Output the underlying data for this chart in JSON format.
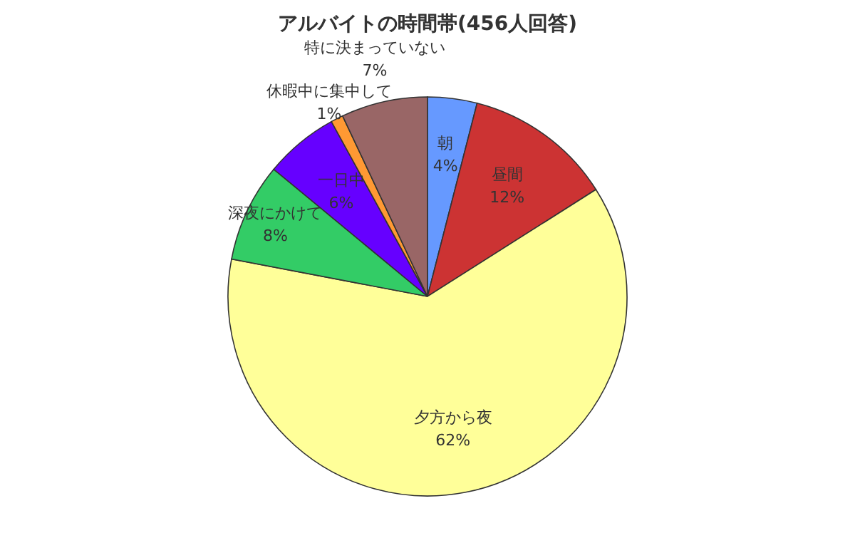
{
  "chart_data": {
    "type": "pie",
    "title": "アルバイトの時間帯(456人回答)",
    "categories": [
      "朝",
      "昼間",
      "夕方から夜",
      "深夜にかけて",
      "一日中",
      "休暇中に集中して",
      "特に決まっていない"
    ],
    "values": [
      4,
      12,
      62,
      8,
      6,
      1,
      7
    ],
    "colors": [
      "#6699ff",
      "#cc3333",
      "#ffff99",
      "#33cc66",
      "#6600ff",
      "#ff9933",
      "#996666"
    ],
    "value_labels": [
      "4%",
      "12%",
      "62%",
      "8%",
      "6%",
      "1%",
      "7%"
    ]
  }
}
